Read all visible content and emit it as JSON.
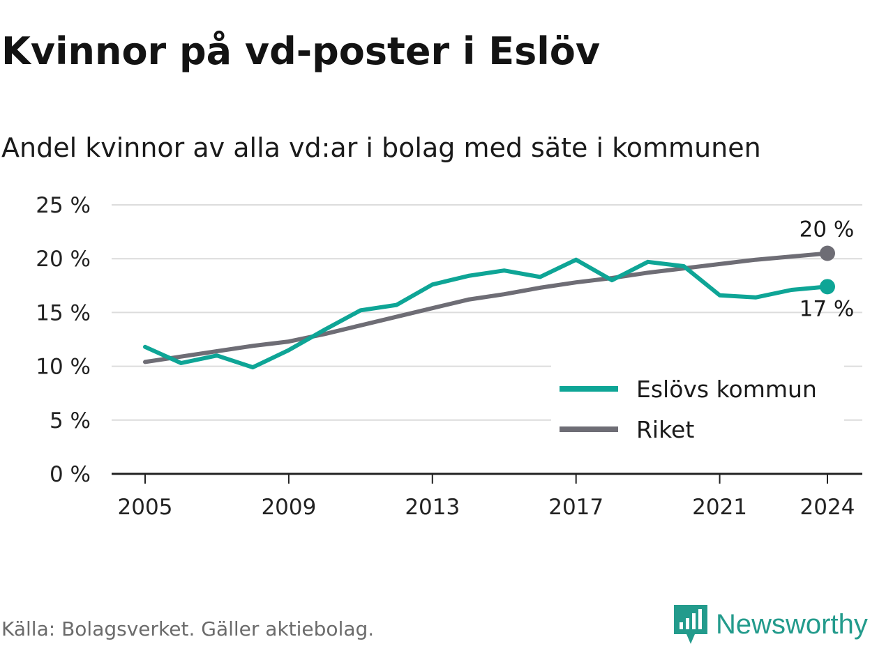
{
  "header": {
    "title": "Kvinnor på vd-poster i Eslöv",
    "subtitle": "Andel kvinnor av alla vd:ar i bolag med säte i kommunen"
  },
  "footer": {
    "source": "Källa: Bolagsverket. Gäller aktiebolag.",
    "brand": "Newsworthy",
    "brand_icon": "newsworthy-logo-icon"
  },
  "colors": {
    "eslov": "#0ea596",
    "riket": "#6e6d75",
    "grid": "#dcdcdc",
    "axis": "#222222",
    "brand": "#239b8c"
  },
  "chart_data": {
    "type": "line",
    "title": "Kvinnor på vd-poster i Eslöv",
    "subtitle": "Andel kvinnor av alla vd:ar i bolag med säte i kommunen",
    "xlabel": "",
    "ylabel": "",
    "x": [
      2005,
      2006,
      2007,
      2008,
      2009,
      2010,
      2011,
      2012,
      2013,
      2014,
      2015,
      2016,
      2017,
      2018,
      2019,
      2020,
      2021,
      2022,
      2023,
      2024
    ],
    "x_ticks": [
      2005,
      2009,
      2013,
      2017,
      2021,
      2024
    ],
    "x_tick_labels": [
      "2005",
      "2009",
      "2013",
      "2017",
      "2021",
      "2024"
    ],
    "xlim": [
      2004,
      2025
    ],
    "ylim": [
      0,
      25
    ],
    "y_ticks": [
      0,
      5,
      10,
      15,
      20,
      25
    ],
    "y_tick_labels": [
      "0 %",
      "5 %",
      "10 %",
      "15 %",
      "20 %",
      "25 %"
    ],
    "grid": true,
    "legend_position": "bottom-right",
    "series": [
      {
        "name": "Eslövs kommun",
        "color": "#0ea596",
        "values": [
          11.8,
          10.3,
          11.0,
          9.9,
          11.5,
          13.4,
          15.2,
          15.7,
          17.6,
          18.4,
          18.9,
          18.3,
          19.9,
          18.0,
          19.7,
          19.3,
          16.6,
          16.4,
          17.1,
          17.4
        ],
        "end_label": "17 %"
      },
      {
        "name": "Riket",
        "color": "#6e6d75",
        "values": [
          10.4,
          10.9,
          11.4,
          11.9,
          12.3,
          13.0,
          13.8,
          14.6,
          15.4,
          16.2,
          16.7,
          17.3,
          17.8,
          18.2,
          18.7,
          19.1,
          19.5,
          19.9,
          20.2,
          20.5
        ],
        "end_label": "20 %"
      }
    ]
  }
}
